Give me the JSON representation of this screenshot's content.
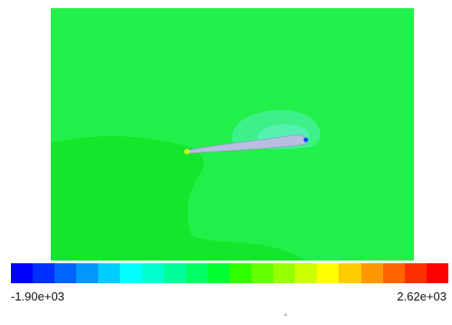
{
  "colormap": {
    "colors": [
      "#0000ff",
      "#0030ff",
      "#0064ff",
      "#0098ff",
      "#00ccff",
      "#00ffff",
      "#00ffcc",
      "#00ff98",
      "#00ff64",
      "#00ff30",
      "#30ff00",
      "#64ff00",
      "#98ff00",
      "#ccff00",
      "#ffff00",
      "#ffcc00",
      "#ff9800",
      "#ff6400",
      "#ff3000",
      "#ff0000"
    ],
    "min_label": "-1.90e+03",
    "max_label": "2.62e+03"
  },
  "field_colors": {
    "background": "#22f04a",
    "lower_region": "#14e62c",
    "upper_bubble": "#3ef08a",
    "airfoil": "#b9bde0"
  },
  "stray_mark": "°"
}
